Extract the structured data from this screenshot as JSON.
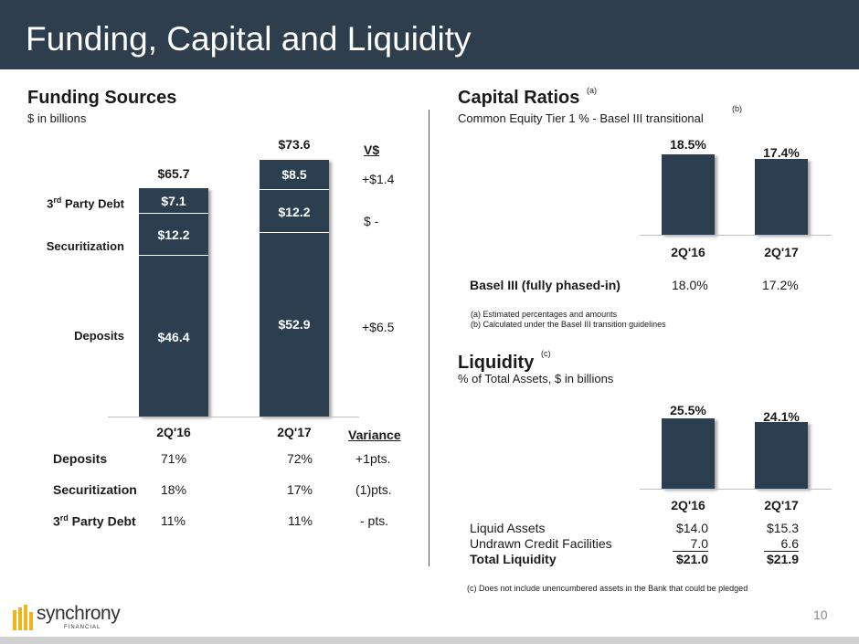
{
  "page": {
    "title": "Funding, Capital and Liquidity",
    "number": "10"
  },
  "funding": {
    "title": "Funding Sources",
    "subtitle": "$ in billions",
    "col_headers": {
      "vs": "V$",
      "variance": "Variance"
    },
    "labels": {
      "third_party_debt": "3rd Party Debt",
      "securitization": "Securitization",
      "deposits": "Deposits"
    },
    "bars": [
      {
        "period": "2Q'16",
        "total": "$65.7",
        "deposits": "$46.4",
        "securitization": "$12.2",
        "third_party_debt": "$7.1"
      },
      {
        "period": "2Q'17",
        "total": "$73.6",
        "deposits": "$52.9",
        "securitization": "$12.2",
        "third_party_debt": "$8.5"
      }
    ],
    "change": {
      "third_party_debt": "+$1.4",
      "securitization": "$ -",
      "deposits": "+$6.5"
    },
    "table": [
      {
        "label": "Deposits",
        "v1": "71%",
        "v2": "72%",
        "variance": "+1pts."
      },
      {
        "label": "Securitization",
        "v1": "18%",
        "v2": "17%",
        "variance": "(1)pts."
      },
      {
        "label": "3rd Party Debt",
        "v1": "11%",
        "v2": "11%",
        "variance": "- pts."
      }
    ]
  },
  "capital": {
    "title": "Capital Ratios",
    "title_note": "(a)",
    "subtitle": "Common Equity Tier 1 % - Basel III transitional",
    "subtitle_note": "(b)",
    "bars": [
      {
        "period": "2Q'16",
        "value": "18.5%"
      },
      {
        "period": "2Q'17",
        "value": "17.4%"
      }
    ],
    "row": {
      "label": "Basel III (fully phased-in)",
      "v1": "18.0%",
      "v2": "17.2%"
    },
    "notes": [
      "(a) Estimated percentages and amounts",
      "(b) Calculated under the Basel III transition guidelines"
    ]
  },
  "liquidity": {
    "title": "Liquidity",
    "title_note": "(c)",
    "subtitle": "% of Total Assets, $ in billions",
    "bars": [
      {
        "period": "2Q'16",
        "value": "25.5%"
      },
      {
        "period": "2Q'17",
        "value": "24.1%"
      }
    ],
    "table": [
      {
        "label": "Liquid Assets",
        "v1": "$14.0",
        "v2": "$15.3"
      },
      {
        "label": "Undrawn Credit Facilities",
        "v1": "7.0",
        "v2": "6.6"
      },
      {
        "label": "Total Liquidity",
        "v1": "$21.0",
        "v2": "$21.9"
      }
    ],
    "note": "(c) Does not include unencumbered assets in the Bank that could be pledged"
  },
  "logo": {
    "name": "synchrony",
    "tagline": "FINANCIAL"
  },
  "colors": {
    "header": "#2e3e4c",
    "bar": "#2b3f50"
  },
  "chart_data": [
    {
      "type": "bar",
      "categories": [
        "2Q'16",
        "2Q'17"
      ],
      "series": [
        {
          "name": "Deposits",
          "values": [
            46.4,
            52.9
          ]
        },
        {
          "name": "Securitization",
          "values": [
            12.2,
            12.2
          ]
        },
        {
          "name": "3rd Party Debt",
          "values": [
            7.1,
            8.5
          ]
        }
      ],
      "totals": [
        65.7,
        73.6
      ],
      "stacked": true
    },
    {
      "type": "bar",
      "categories": [
        "2Q'16",
        "2Q'17"
      ],
      "values": [
        18.5,
        17.4
      ]
    },
    {
      "type": "bar",
      "categories": [
        "2Q'16",
        "2Q'17"
      ],
      "values": [
        25.5,
        24.1
      ]
    }
  ]
}
